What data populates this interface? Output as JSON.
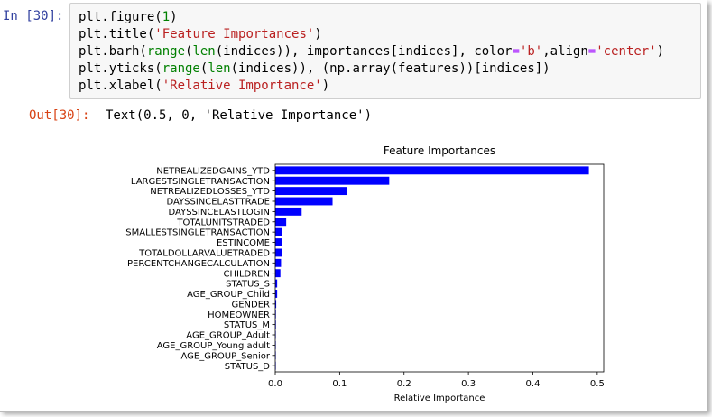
{
  "cell": {
    "in_prompt": "In [30]:",
    "out_prompt": "Out[30]:",
    "output_text": "Text(0.5, 0, 'Relative Importance')",
    "code_lines": [
      "plt.figure(1)",
      "plt.title('Feature Importances')",
      "plt.barh(range(len(indices)), importances[indices], color='b',align='center')",
      "plt.yticks(range(len(indices)), (np.array(features))[indices])",
      "plt.xlabel('Relative Importance')"
    ]
  },
  "colors": {
    "bar": "#0000ff",
    "prompt_in": "#303f9f",
    "prompt_out": "#d84315"
  },
  "chart_data": {
    "type": "bar",
    "orientation": "horizontal",
    "title": "Feature Importances",
    "xlabel": "Relative Importance",
    "ylabel": "",
    "xlim": [
      0,
      0.51
    ],
    "xticks": [
      0.0,
      0.1,
      0.2,
      0.3,
      0.4,
      0.5
    ],
    "xtick_labels": [
      "0.0",
      "0.1",
      "0.2",
      "0.3",
      "0.4",
      "0.5"
    ],
    "grid": false,
    "categories": [
      "NETREALIZEDGAINS_YTD",
      "LARGESTSINGLETRANSACTION",
      "NETREALIZEDLOSSES_YTD",
      "DAYSSINCELASTTRADE",
      "DAYSSINCELASTLOGIN",
      "TOTALUNITSTRADED",
      "SMALLESTSINGLETRANSACTION",
      "ESTINCOME",
      "TOTALDOLLARVALUETRADED",
      "PERCENTCHANGECALCULATION",
      "CHILDREN",
      "STATUS_S",
      "AGE_GROUP_Child",
      "GENDER",
      "HOMEOWNER",
      "STATUS_M",
      "AGE_GROUP_Adult",
      "AGE_GROUP_Young adult",
      "AGE_GROUP_Senior",
      "STATUS_D"
    ],
    "values": [
      0.487,
      0.177,
      0.112,
      0.089,
      0.041,
      0.017,
      0.011,
      0.011,
      0.01,
      0.009,
      0.008,
      0.003,
      0.003,
      0.0015,
      0.001,
      0.001,
      0.0005,
      0.0004,
      0.0003,
      0.0002
    ]
  }
}
